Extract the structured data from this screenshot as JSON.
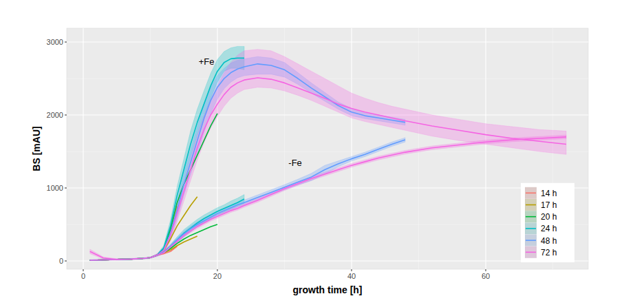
{
  "chart_data": {
    "type": "line",
    "xlabel": "growth time [h]",
    "ylabel": "BS [mAU]",
    "xlim": [
      -2.46,
      75.28
    ],
    "ylim": [
      -113,
      3189
    ],
    "xticks": [
      0,
      20,
      40,
      60
    ],
    "yticks": [
      0,
      1000,
      2000,
      3000
    ],
    "grid": true,
    "legend": "bottom-right",
    "annotations": [
      {
        "text": "+Fe",
        "x": 17.2,
        "y": 2740
      },
      {
        "text": "-Fe",
        "x": 30.6,
        "y": 1345
      }
    ],
    "x": [
      1,
      3,
      5,
      7,
      9,
      10,
      11,
      12,
      13,
      14,
      15,
      16,
      17,
      18,
      19,
      20,
      21,
      22,
      23,
      24,
      26,
      28,
      30,
      32,
      34,
      36,
      38,
      40,
      42,
      44,
      46,
      48,
      52,
      56,
      60,
      64,
      68,
      72
    ],
    "series": [
      {
        "name": "14 h",
        "color": "#F8766D",
        "values": [
          10,
          15,
          20,
          25,
          35,
          45,
          80,
          170,
          450,
          750,
          null,
          null,
          null,
          null,
          null,
          null,
          null,
          null,
          null,
          null,
          null,
          null,
          null,
          null,
          null,
          null,
          null,
          null,
          null,
          null,
          null,
          null,
          null,
          null,
          null,
          null,
          null,
          null
        ]
      },
      {
        "name": "17 h",
        "color": "#B79F00",
        "values": [
          10,
          15,
          20,
          25,
          35,
          45,
          80,
          140,
          300,
          480,
          620,
          760,
          880,
          null,
          null,
          null,
          null,
          null,
          null,
          null,
          null,
          null,
          null,
          null,
          null,
          null,
          null,
          null,
          null,
          null,
          null,
          null,
          null,
          null,
          null,
          null,
          null,
          null
        ]
      },
      {
        "name": "20 h",
        "color": "#00BA38",
        "values": [
          10,
          15,
          20,
          25,
          35,
          45,
          80,
          170,
          430,
          800,
          1050,
          1250,
          1450,
          1650,
          1850,
          2020,
          null,
          null,
          null,
          null,
          null,
          null,
          null,
          null,
          null,
          null,
          null,
          null,
          null,
          null,
          null,
          null,
          null,
          null,
          null,
          null,
          null,
          null
        ]
      },
      {
        "name": "24 h",
        "color": "#00BFC4",
        "values": [
          10,
          15,
          20,
          25,
          35,
          45,
          80,
          180,
          480,
          900,
          1250,
          1600,
          1900,
          2150,
          2400,
          2600,
          2720,
          2770,
          2780,
          2780,
          null,
          null,
          null,
          null,
          null,
          null,
          null,
          null,
          null,
          null,
          null,
          null,
          null,
          null,
          null,
          null,
          null,
          null
        ],
        "lower": [
          5,
          10,
          15,
          20,
          30,
          40,
          70,
          150,
          400,
          780,
          1100,
          1420,
          1720,
          1980,
          2230,
          2450,
          2600,
          2640,
          2640,
          2620,
          null,
          null,
          null,
          null,
          null,
          null,
          null,
          null,
          null,
          null,
          null,
          null,
          null,
          null,
          null,
          null,
          null,
          null
        ],
        "upper": [
          15,
          20,
          25,
          30,
          40,
          50,
          90,
          210,
          560,
          1020,
          1400,
          1780,
          2080,
          2330,
          2570,
          2760,
          2870,
          2920,
          2940,
          2940,
          null,
          null,
          null,
          null,
          null,
          null,
          null,
          null,
          null,
          null,
          null,
          null,
          null,
          null,
          null,
          null,
          null,
          null
        ]
      },
      {
        "name": "48 h",
        "color": "#619CFF",
        "values": [
          10,
          15,
          20,
          25,
          35,
          45,
          80,
          150,
          380,
          700,
          1050,
          1350,
          1650,
          1950,
          2200,
          2380,
          2500,
          2580,
          2630,
          2660,
          2700,
          2680,
          2620,
          2500,
          2370,
          2250,
          2130,
          2040,
          1990,
          1960,
          1930,
          1900,
          null,
          null,
          null,
          null,
          null,
          null
        ],
        "lower": [
          5,
          10,
          15,
          20,
          30,
          40,
          70,
          110,
          300,
          580,
          900,
          1180,
          1460,
          1760,
          2020,
          2220,
          2360,
          2450,
          2510,
          2540,
          2560,
          2560,
          2520,
          2420,
          2300,
          2190,
          2080,
          1990,
          1950,
          1920,
          1890,
          1860,
          null,
          null,
          null,
          null,
          null,
          null
        ],
        "upper": [
          15,
          20,
          25,
          30,
          40,
          50,
          90,
          190,
          460,
          820,
          1200,
          1520,
          1840,
          2140,
          2380,
          2540,
          2640,
          2710,
          2750,
          2770,
          2800,
          2780,
          2720,
          2580,
          2440,
          2310,
          2180,
          2090,
          2030,
          2000,
          1970,
          1940,
          null,
          null,
          null,
          null,
          null,
          null
        ]
      },
      {
        "name": "72 h",
        "color": "#F564E3",
        "values": [
          130,
          40,
          20,
          25,
          35,
          45,
          80,
          140,
          350,
          650,
          950,
          1250,
          1550,
          1800,
          2000,
          2150,
          2280,
          2380,
          2440,
          2480,
          2510,
          2490,
          2440,
          2370,
          2300,
          2230,
          2150,
          2090,
          2040,
          2000,
          1960,
          1920,
          1850,
          1790,
          1730,
          1680,
          1640,
          1600
        ],
        "lower": [
          100,
          25,
          10,
          15,
          25,
          35,
          60,
          100,
          270,
          540,
          820,
          1100,
          1380,
          1620,
          1820,
          1980,
          2120,
          2230,
          2300,
          2350,
          2380,
          2370,
          2330,
          2270,
          2200,
          2120,
          2040,
          1960,
          1910,
          1870,
          1830,
          1790,
          1710,
          1650,
          1600,
          1550,
          1500,
          1460
        ],
        "upper": [
          160,
          55,
          30,
          35,
          45,
          55,
          100,
          180,
          430,
          760,
          1080,
          1400,
          1720,
          1990,
          2220,
          2400,
          2580,
          2720,
          2820,
          2880,
          2900,
          2880,
          2800,
          2700,
          2600,
          2500,
          2400,
          2300,
          2230,
          2170,
          2120,
          2080,
          2000,
          1940,
          1880,
          1840,
          1800,
          1780
        ]
      },
      {
        "name": "14 h",
        "color": "#F8766D",
        "values": [
          10,
          15,
          20,
          25,
          35,
          45,
          80,
          100,
          130,
          200,
          null,
          null,
          null,
          null,
          null,
          null,
          null,
          null,
          null,
          null,
          null,
          null,
          null,
          null,
          null,
          null,
          null,
          null,
          null,
          null,
          null,
          null,
          null,
          null,
          null,
          null,
          null,
          null
        ]
      },
      {
        "name": "17 h",
        "color": "#B79F00",
        "values": [
          10,
          15,
          20,
          25,
          35,
          45,
          80,
          110,
          150,
          210,
          260,
          300,
          340,
          null,
          null,
          null,
          null,
          null,
          null,
          null,
          null,
          null,
          null,
          null,
          null,
          null,
          null,
          null,
          null,
          null,
          null,
          null,
          null,
          null,
          null,
          null,
          null,
          null
        ]
      },
      {
        "name": "20 h",
        "color": "#00BA38",
        "values": [
          10,
          15,
          20,
          25,
          35,
          45,
          80,
          115,
          170,
          240,
          300,
          350,
          390,
          430,
          470,
          500,
          null,
          null,
          null,
          null,
          null,
          null,
          null,
          null,
          null,
          null,
          null,
          null,
          null,
          null,
          null,
          null,
          null,
          null,
          null,
          null,
          null,
          null
        ]
      },
      {
        "name": "24 h",
        "color": "#00BFC4",
        "values": [
          10,
          15,
          20,
          25,
          35,
          45,
          80,
          120,
          200,
          290,
          380,
          450,
          520,
          580,
          630,
          680,
          720,
          760,
          800,
          850,
          null,
          null,
          null,
          null,
          null,
          null,
          null,
          null,
          null,
          null,
          null,
          null,
          null,
          null,
          null,
          null,
          null,
          null
        ],
        "lower": [
          5,
          10,
          15,
          20,
          30,
          40,
          70,
          105,
          175,
          250,
          330,
          400,
          470,
          530,
          580,
          630,
          670,
          710,
          750,
          790,
          null,
          null,
          null,
          null,
          null,
          null,
          null,
          null,
          null,
          null,
          null,
          null,
          null,
          null,
          null,
          null,
          null,
          null
        ],
        "upper": [
          15,
          20,
          25,
          30,
          40,
          50,
          90,
          135,
          225,
          330,
          430,
          500,
          570,
          630,
          680,
          730,
          770,
          820,
          860,
          910,
          null,
          null,
          null,
          null,
          null,
          null,
          null,
          null,
          null,
          null,
          null,
          null,
          null,
          null,
          null,
          null,
          null,
          null
        ]
      },
      {
        "name": "48 h",
        "color": "#619CFF",
        "values": [
          10,
          15,
          20,
          25,
          35,
          45,
          80,
          120,
          200,
          290,
          370,
          440,
          500,
          550,
          600,
          650,
          690,
          730,
          770,
          800,
          870,
          940,
          1010,
          1080,
          1150,
          1250,
          1330,
          1400,
          1460,
          1530,
          1600,
          1660,
          null,
          null,
          null,
          null,
          null,
          null
        ],
        "lower": [
          5,
          10,
          15,
          20,
          30,
          40,
          70,
          100,
          175,
          260,
          335,
          405,
          465,
          515,
          565,
          615,
          655,
          695,
          735,
          765,
          835,
          905,
          975,
          1040,
          1100,
          1190,
          1290,
          1370,
          1430,
          1500,
          1570,
          1630,
          null,
          null,
          null,
          null,
          null,
          null
        ],
        "upper": [
          15,
          20,
          25,
          30,
          40,
          50,
          90,
          140,
          225,
          320,
          405,
          475,
          535,
          585,
          635,
          685,
          725,
          765,
          805,
          835,
          905,
          975,
          1045,
          1120,
          1200,
          1310,
          1370,
          1430,
          1490,
          1560,
          1630,
          1690,
          null,
          null,
          null,
          null,
          null,
          null
        ]
      },
      {
        "name": "72 h",
        "color": "#F564E3",
        "values": [
          10,
          15,
          20,
          25,
          35,
          45,
          80,
          110,
          190,
          270,
          350,
          410,
          470,
          520,
          570,
          610,
          650,
          690,
          720,
          760,
          830,
          910,
          990,
          1060,
          1130,
          1190,
          1250,
          1310,
          1360,
          1410,
          1450,
          1490,
          1550,
          1590,
          1630,
          1660,
          1680,
          1700
        ],
        "lower": [
          5,
          10,
          15,
          20,
          30,
          40,
          70,
          90,
          165,
          245,
          325,
          385,
          445,
          495,
          545,
          585,
          625,
          665,
          695,
          735,
          805,
          885,
          965,
          1035,
          1105,
          1165,
          1225,
          1285,
          1335,
          1385,
          1425,
          1465,
          1525,
          1565,
          1605,
          1635,
          1655,
          1675
        ],
        "upper": [
          15,
          20,
          25,
          30,
          40,
          50,
          90,
          130,
          215,
          295,
          375,
          435,
          495,
          545,
          595,
          635,
          675,
          715,
          745,
          785,
          855,
          935,
          1015,
          1085,
          1155,
          1215,
          1275,
          1335,
          1385,
          1435,
          1475,
          1515,
          1575,
          1615,
          1655,
          1685,
          1705,
          1725
        ]
      }
    ]
  }
}
